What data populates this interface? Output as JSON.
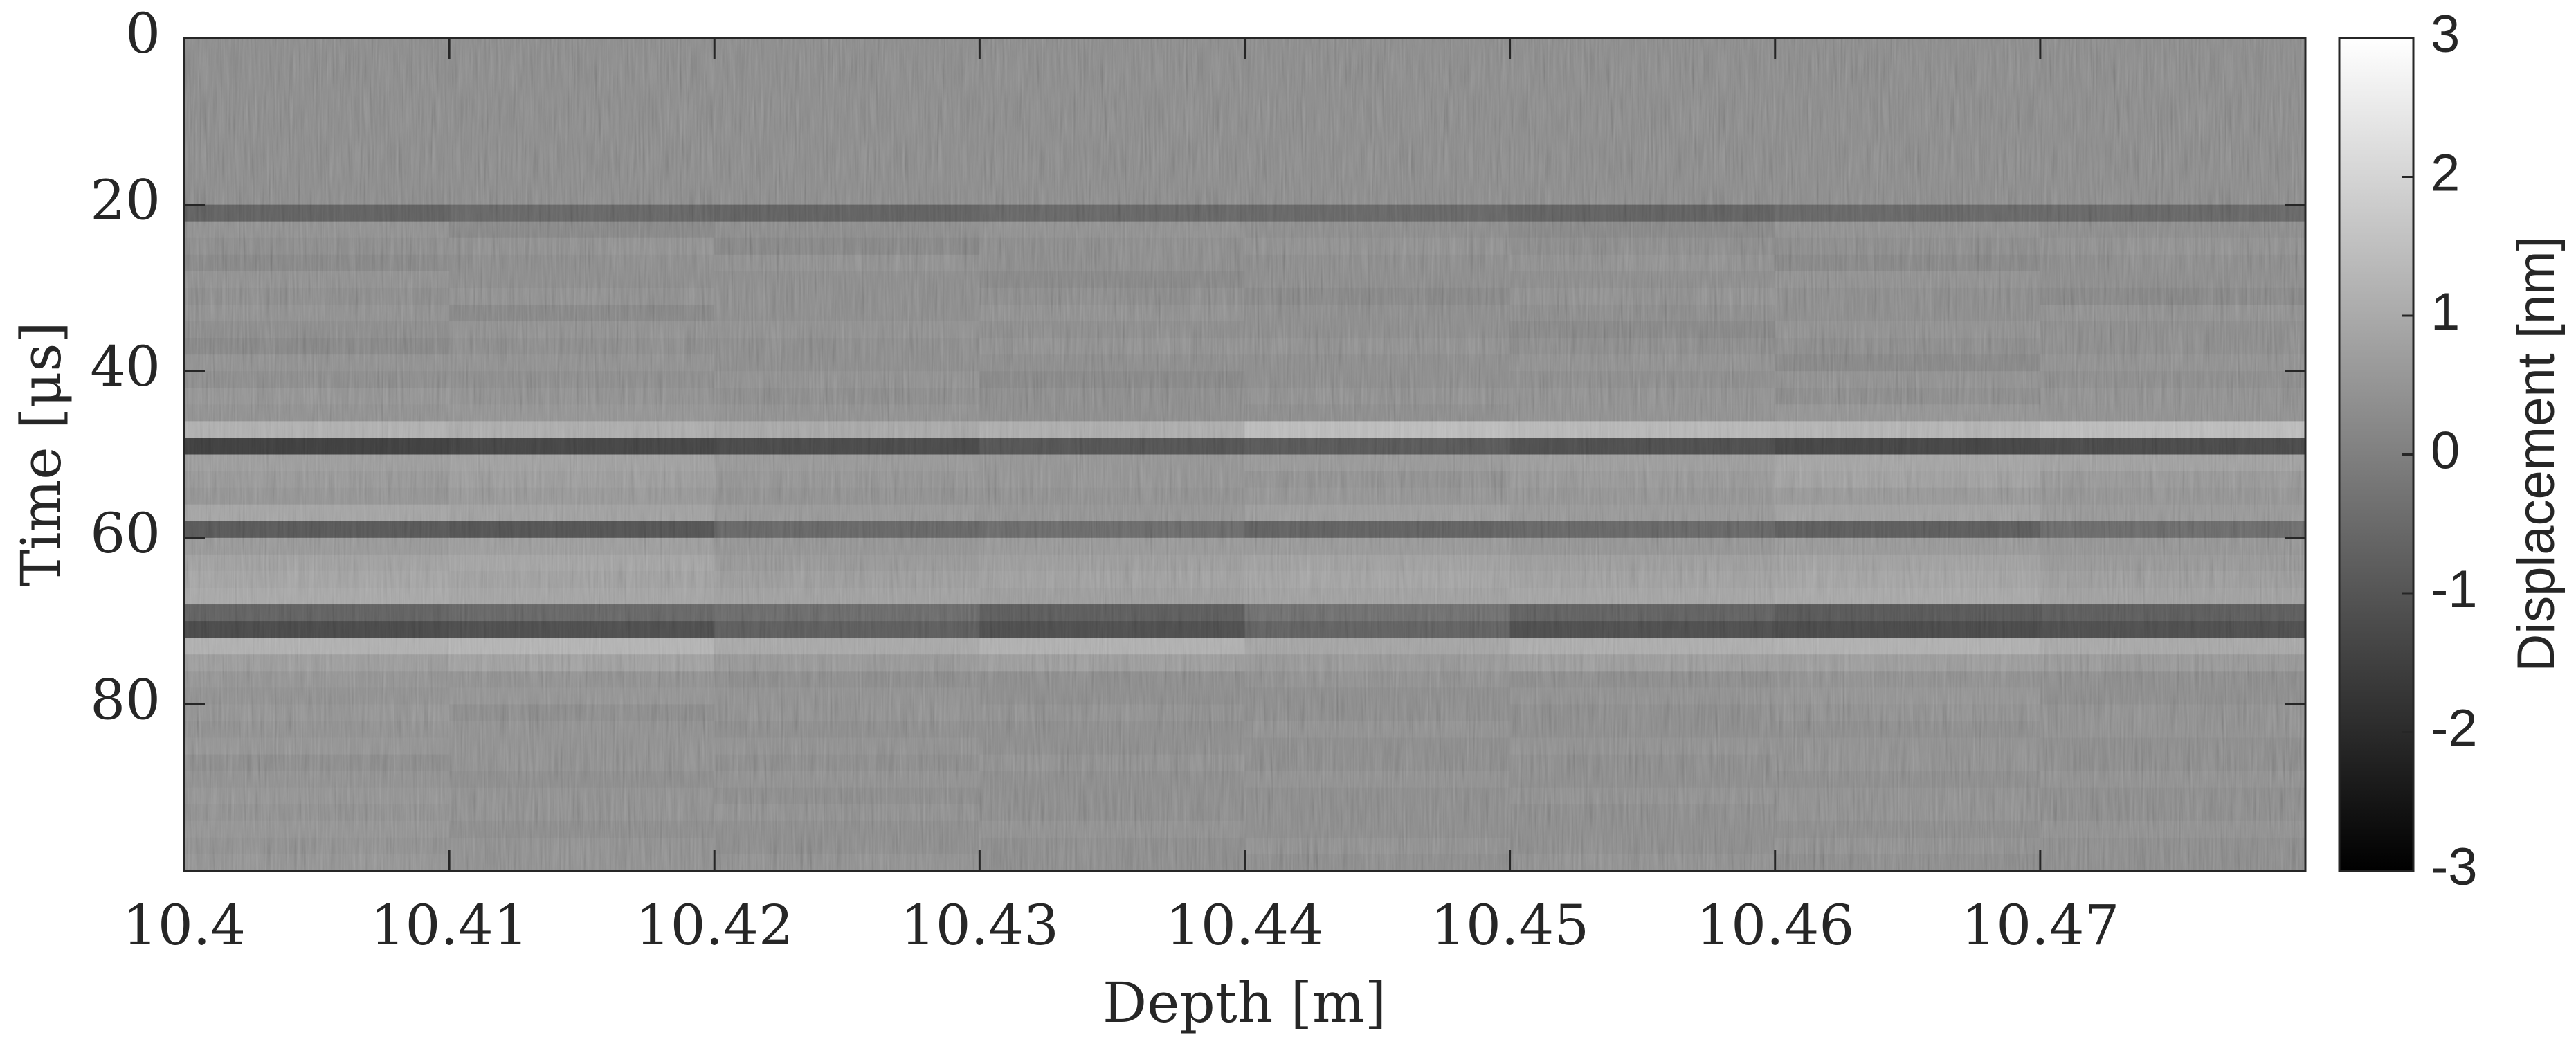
{
  "chart_data": {
    "type": "heatmap",
    "x_label": "Depth [m]",
    "y_label": "Time [μs]",
    "colorbar_label": "Displacement [nm]",
    "colormap": "gray",
    "y_reversed": true,
    "xlim": [
      10.4,
      10.48
    ],
    "xticks": [
      10.4,
      10.41,
      10.42,
      10.43,
      10.44,
      10.45,
      10.46,
      10.47
    ],
    "ylim": [
      0,
      100
    ],
    "yticks": [
      0,
      20,
      40,
      60,
      80
    ],
    "zlim": [
      -3,
      3
    ],
    "zticks": [
      -3,
      -2,
      -1,
      0,
      1,
      2,
      3
    ],
    "x": [
      10.405,
      10.415,
      10.425,
      10.435,
      10.445,
      10.455,
      10.465,
      10.475
    ],
    "y": [
      1,
      3,
      5,
      7,
      9,
      11,
      13,
      15,
      17,
      19,
      21,
      23,
      25,
      27,
      29,
      31,
      33,
      35,
      37,
      39,
      41,
      43,
      45,
      47,
      49,
      51,
      53,
      55,
      57,
      59,
      61,
      63,
      65,
      67,
      69,
      71,
      73,
      75,
      77,
      79,
      81,
      83,
      85,
      87,
      89,
      91,
      93,
      95,
      97,
      99
    ],
    "values": [
      [
        0,
        0,
        0,
        0,
        0,
        0,
        0,
        0
      ],
      [
        0,
        0,
        0,
        0,
        0,
        0,
        0,
        0
      ],
      [
        0,
        0,
        0,
        0,
        0,
        0,
        0,
        0
      ],
      [
        0,
        0,
        0,
        0,
        0,
        0,
        0,
        0
      ],
      [
        0,
        0,
        0,
        0,
        0,
        0,
        0,
        0
      ],
      [
        0,
        0,
        0,
        0,
        0,
        0,
        0,
        0
      ],
      [
        0,
        0,
        0,
        0,
        0,
        0,
        0,
        0
      ],
      [
        0,
        0,
        0,
        0,
        0,
        0,
        0,
        0
      ],
      [
        0,
        0,
        0,
        0,
        0,
        0,
        0,
        0
      ],
      [
        0,
        0,
        0,
        0,
        0,
        0,
        0,
        0
      ],
      [
        -0.9,
        -0.8,
        -0.9,
        -0.8,
        -0.8,
        -0.9,
        -0.8,
        -0.8
      ],
      [
        0.1,
        -0.1,
        0,
        0.1,
        0,
        -0.1,
        0.1,
        0
      ],
      [
        0,
        0.1,
        -0.1,
        0,
        0.1,
        0,
        0,
        0.1
      ],
      [
        -0.1,
        0,
        0.1,
        0,
        0,
        0.1,
        -0.1,
        0
      ],
      [
        0.1,
        0,
        0,
        -0.1,
        0,
        0,
        0.1,
        0
      ],
      [
        0,
        0.1,
        0,
        0,
        -0.1,
        0.1,
        0,
        -0.1
      ],
      [
        0.1,
        -0.1,
        0,
        0.1,
        0,
        0,
        0,
        0.1
      ],
      [
        0,
        0.1,
        0.1,
        0,
        0,
        -0.1,
        0.1,
        0
      ],
      [
        -0.1,
        0,
        0,
        0.1,
        0.1,
        0,
        0,
        0
      ],
      [
        0.1,
        0.1,
        0,
        0,
        0,
        0.1,
        -0.1,
        0.1
      ],
      [
        0,
        0,
        0.1,
        -0.1,
        0,
        0,
        0.1,
        0
      ],
      [
        0.2,
        0.1,
        0,
        0,
        0.1,
        0.1,
        0,
        0.1
      ],
      [
        0.1,
        0.2,
        0.1,
        0,
        0,
        0.1,
        0.2,
        0.1
      ],
      [
        0.9,
        0.8,
        0.7,
        0.8,
        1.2,
        1.1,
        1.0,
        1.2
      ],
      [
        -1.6,
        -1.5,
        -1.4,
        -1.2,
        -1.1,
        -1.3,
        -1.5,
        -1.4
      ],
      [
        0.4,
        0.5,
        0.3,
        0.2,
        0.3,
        0.4,
        0.6,
        0.5
      ],
      [
        0.3,
        0.4,
        0.2,
        0.2,
        0.1,
        0.3,
        0.5,
        0.3
      ],
      [
        0.2,
        0.3,
        0.1,
        0.1,
        0.2,
        0.2,
        0.3,
        0.2
      ],
      [
        0.6,
        0.5,
        0.3,
        0.2,
        0.4,
        0.3,
        0.5,
        0.3
      ],
      [
        -1.1,
        -1.2,
        -0.8,
        -0.7,
        -0.9,
        -0.8,
        -1.0,
        -0.7
      ],
      [
        0.3,
        0.4,
        0.2,
        0.3,
        0.3,
        0.2,
        0.3,
        0.2
      ],
      [
        0.5,
        0.6,
        0.3,
        0.4,
        0.5,
        0.4,
        0.5,
        0.3
      ],
      [
        0.6,
        0.5,
        0.4,
        0.5,
        0.6,
        0.5,
        0.6,
        0.4
      ],
      [
        0.7,
        0.6,
        0.5,
        0.4,
        0.5,
        0.6,
        0.7,
        0.5
      ],
      [
        -0.9,
        -0.8,
        -0.7,
        -1.0,
        -0.6,
        -0.9,
        -1.1,
        -1.0
      ],
      [
        -1.4,
        -1.3,
        -1.0,
        -1.3,
        -0.9,
        -1.3,
        -1.4,
        -1.3
      ],
      [
        0.9,
        1.0,
        0.7,
        0.9,
        0.6,
        0.8,
        0.9,
        0.7
      ],
      [
        0.4,
        0.5,
        0.3,
        0.4,
        0.3,
        0.4,
        0.4,
        0.3
      ],
      [
        0.2,
        0.1,
        0,
        0,
        0.1,
        0,
        0.1,
        0
      ],
      [
        0.1,
        0.2,
        0.1,
        0,
        0,
        0.1,
        0.2,
        0
      ],
      [
        0.2,
        0,
        0.1,
        0.1,
        0,
        0,
        0.1,
        0.1
      ],
      [
        0.1,
        0.1,
        0,
        0,
        0.1,
        0,
        0,
        0.1
      ],
      [
        0.2,
        0.1,
        0.1,
        0,
        0,
        0.1,
        0.1,
        0
      ],
      [
        0,
        0.1,
        0,
        0.1,
        0,
        0,
        0.1,
        0
      ],
      [
        0.1,
        0,
        0.1,
        0,
        0.1,
        0,
        0,
        0.1
      ],
      [
        0.2,
        0.1,
        0,
        0,
        0,
        0.1,
        0.1,
        0
      ],
      [
        0.1,
        0.1,
        0.1,
        0,
        0,
        0,
        0.1,
        0
      ],
      [
        0.2,
        0,
        0,
        0.1,
        0,
        0,
        0,
        0.1
      ],
      [
        0.1,
        0.1,
        0,
        0,
        0.1,
        0,
        0.1,
        0
      ],
      [
        0.2,
        0.1,
        0.1,
        0,
        0,
        0.1,
        0,
        0
      ]
    ]
  }
}
